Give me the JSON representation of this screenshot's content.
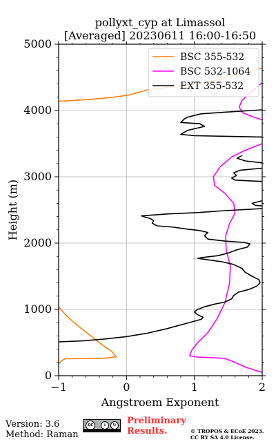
{
  "chart_data": {
    "type": "line",
    "title": "pollyxt_cyp at Limassol",
    "subtitle": "[Averaged] 20230611 16:00-16:50",
    "xlabel": "Angstroem Exponent",
    "ylabel": "Height (m)",
    "xlim": [
      -1,
      2
    ],
    "ylim": [
      0,
      5000
    ],
    "xticks": [
      -1,
      0,
      1,
      2
    ],
    "yticks": [
      0,
      1000,
      2000,
      3000,
      4000,
      5000
    ],
    "xtick_labels": [
      "−1",
      "0",
      "1",
      "2"
    ],
    "ytick_labels": [
      "0",
      "1000",
      "2000",
      "3000",
      "4000",
      "5000"
    ],
    "grid": true,
    "legend_position": "top-right",
    "series": [
      {
        "name": "BSC 355-532",
        "color": "#ff7f0e",
        "points": [
          [
            -1.0,
            180
          ],
          [
            -0.95,
            230
          ],
          [
            -0.9,
            255
          ],
          [
            -0.6,
            258
          ],
          [
            -0.3,
            265
          ],
          [
            -0.15,
            285
          ],
          [
            -0.22,
            370
          ],
          [
            -0.35,
            460
          ],
          [
            -0.55,
            620
          ],
          [
            -0.75,
            780
          ],
          [
            -0.9,
            920
          ],
          [
            -1.0,
            1040
          ],
          null,
          [
            -1.0,
            4140
          ],
          [
            -0.8,
            4150
          ],
          [
            -0.5,
            4170
          ],
          [
            -0.2,
            4200
          ],
          [
            0.05,
            4235
          ],
          [
            0.2,
            4280
          ],
          [
            0.3,
            4310
          ],
          [
            0.55,
            4340
          ],
          [
            0.85,
            4380
          ],
          [
            1.2,
            4430
          ],
          [
            1.6,
            4530
          ],
          [
            1.9,
            4610
          ],
          [
            2.0,
            4640
          ]
        ]
      },
      {
        "name": "BSC 532-1064",
        "color": "#ff00ff",
        "points": [
          [
            2.0,
            50
          ],
          [
            1.9,
            80
          ],
          [
            1.75,
            130
          ],
          [
            1.6,
            200
          ],
          [
            1.45,
            260
          ],
          [
            1.3,
            270
          ],
          [
            1.05,
            280
          ],
          [
            0.93,
            300
          ],
          [
            0.96,
            380
          ],
          [
            1.05,
            500
          ],
          [
            1.2,
            650
          ],
          [
            1.33,
            850
          ],
          [
            1.45,
            1100
          ],
          [
            1.52,
            1400
          ],
          [
            1.53,
            1650
          ],
          [
            1.47,
            1900
          ],
          [
            1.46,
            2100
          ],
          [
            1.52,
            2300
          ],
          [
            1.6,
            2450
          ],
          [
            1.58,
            2600
          ],
          [
            1.45,
            2750
          ],
          [
            1.3,
            2870
          ],
          [
            1.28,
            3000
          ],
          [
            1.38,
            3150
          ],
          [
            1.55,
            3300
          ],
          [
            1.75,
            3400
          ],
          [
            2.0,
            3500
          ],
          null,
          [
            2.0,
            3860
          ],
          [
            1.88,
            3900
          ],
          [
            1.72,
            3960
          ],
          [
            1.66,
            4050
          ],
          [
            1.7,
            4150
          ],
          [
            1.82,
            4260
          ],
          [
            1.95,
            4380
          ],
          [
            2.0,
            4420
          ]
        ]
      },
      {
        "name": "EXT 355-532",
        "color": "#000000",
        "points": [
          [
            -1.0,
            510
          ],
          [
            -0.65,
            525
          ],
          [
            -0.35,
            550
          ],
          [
            0.0,
            590
          ],
          [
            0.3,
            640
          ],
          [
            0.6,
            710
          ],
          [
            0.85,
            780
          ],
          [
            1.1,
            850
          ],
          [
            1.13,
            880
          ],
          [
            1.05,
            920
          ],
          [
            1.0,
            960
          ],
          [
            1.05,
            1000
          ],
          [
            1.15,
            1040
          ],
          [
            1.3,
            1080
          ],
          [
            1.45,
            1110
          ],
          [
            1.55,
            1160
          ],
          [
            1.58,
            1210
          ],
          [
            1.65,
            1260
          ],
          [
            1.8,
            1300
          ],
          [
            1.92,
            1350
          ],
          [
            1.97,
            1400
          ],
          [
            1.95,
            1450
          ],
          [
            1.85,
            1500
          ],
          [
            1.75,
            1560
          ],
          [
            1.7,
            1620
          ],
          [
            1.57,
            1680
          ],
          [
            1.4,
            1720
          ],
          [
            1.05,
            1770
          ],
          [
            1.1,
            1780
          ],
          [
            1.35,
            1810
          ],
          [
            1.5,
            1850
          ],
          [
            1.63,
            1900
          ],
          [
            1.78,
            1940
          ],
          [
            1.82,
            1990
          ],
          [
            1.73,
            2010
          ],
          [
            1.45,
            2030
          ],
          [
            1.2,
            2060
          ],
          [
            1.15,
            2110
          ],
          [
            1.2,
            2160
          ],
          [
            1.08,
            2190
          ],
          [
            0.9,
            2210
          ],
          [
            0.7,
            2240
          ],
          [
            0.45,
            2260
          ],
          [
            0.38,
            2300
          ],
          [
            0.4,
            2340
          ],
          [
            0.35,
            2370
          ],
          [
            0.22,
            2410
          ],
          [
            0.6,
            2440
          ],
          [
            1.05,
            2460
          ],
          [
            1.45,
            2490
          ],
          [
            2.0,
            2520
          ],
          null,
          [
            2.0,
            2640
          ],
          [
            1.85,
            2600
          ],
          [
            1.9,
            2570
          ],
          [
            2.0,
            2560
          ],
          null,
          [
            2.0,
            2930
          ],
          [
            1.8,
            2940
          ],
          [
            1.6,
            2950
          ],
          [
            1.55,
            2980
          ],
          [
            1.62,
            3020
          ],
          [
            1.58,
            3060
          ],
          [
            1.68,
            3100
          ],
          [
            2.0,
            3130
          ],
          null,
          [
            2.0,
            3210
          ],
          [
            1.75,
            3240
          ],
          [
            1.63,
            3280
          ],
          [
            1.7,
            3320
          ],
          null,
          [
            2.0,
            3600
          ],
          [
            1.5,
            3610
          ],
          [
            1.0,
            3620
          ],
          [
            0.8,
            3640
          ],
          [
            0.9,
            3700
          ],
          [
            1.15,
            3760
          ],
          [
            1.08,
            3800
          ],
          [
            0.8,
            3820
          ],
          [
            0.85,
            3870
          ],
          [
            0.9,
            3900
          ],
          [
            1.1,
            3950
          ],
          [
            1.45,
            3975
          ],
          [
            2.0,
            4010
          ]
        ]
      }
    ]
  },
  "footer": {
    "version": "Version: 3.6",
    "method": "Method: Raman",
    "preliminary_line1": "Preliminary",
    "preliminary_line2": "Results.",
    "copyright_line1": "© TROPOS & ECoE 2023.",
    "copyright_line2": "CC BY SA 4.0 License.",
    "license_icon_names": [
      "cc-icon",
      "by-icon",
      "sa-icon"
    ]
  }
}
